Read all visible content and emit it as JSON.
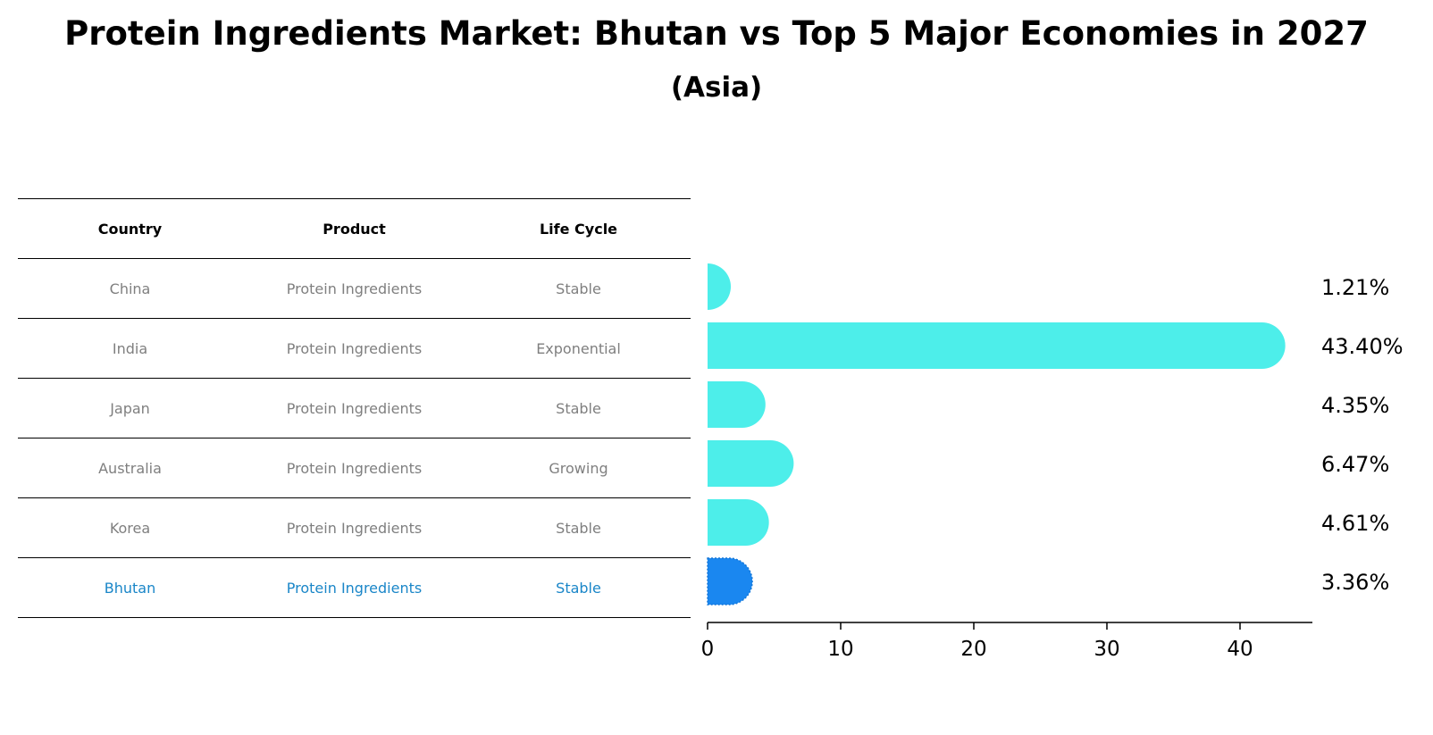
{
  "title": "Protein Ingredients Market: Bhutan vs Top 5 Major Economies in 2027",
  "subtitle": "(Asia)",
  "table": {
    "headers": [
      "Country",
      "Product",
      "Life Cycle"
    ],
    "rows": [
      {
        "country": "China",
        "product": "Protein Ingredients",
        "life_cycle": "Stable"
      },
      {
        "country": "India",
        "product": "Protein Ingredients",
        "life_cycle": "Exponential"
      },
      {
        "country": "Japan",
        "product": "Protein Ingredients",
        "life_cycle": "Stable"
      },
      {
        "country": "Australia",
        "product": "Protein Ingredients",
        "life_cycle": "Growing"
      },
      {
        "country": "Korea",
        "product": "Protein Ingredients",
        "life_cycle": "Stable"
      },
      {
        "country": "Bhutan",
        "product": "Protein Ingredients",
        "life_cycle": "Stable"
      }
    ],
    "highlight_color": "#1a86c8",
    "text_color": "#7f7f7f"
  },
  "chart_data": {
    "type": "bar",
    "orientation": "horizontal",
    "categories": [
      "China",
      "India",
      "Japan",
      "Australia",
      "Korea",
      "Bhutan"
    ],
    "values": [
      1.21,
      43.4,
      4.35,
      6.47,
      4.61,
      3.36
    ],
    "value_labels": [
      "1.21%",
      "43.40%",
      "4.35%",
      "6.47%",
      "4.61%",
      "3.36%"
    ],
    "xticks": [
      0,
      10,
      20,
      30,
      40
    ],
    "xlim": [
      0,
      45.5
    ],
    "colors": {
      "default": "#4deeea",
      "highlight": "#1a87f0"
    },
    "highlight_index": 5
  }
}
